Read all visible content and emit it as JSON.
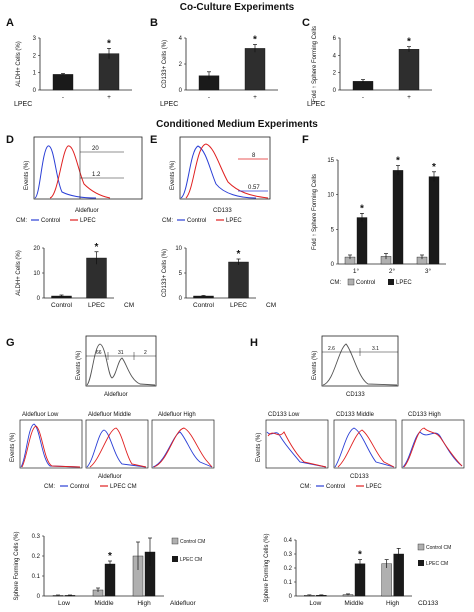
{
  "titles": {
    "coculture": "Co-Culture Experiments",
    "conditioned": "Conditioned Medium Experiments"
  },
  "panel_letters": [
    "A",
    "B",
    "C",
    "D",
    "E",
    "F",
    "G",
    "H"
  ],
  "colors": {
    "control_bar": "#1a1a1a",
    "treated_bar": "#2e2e2e",
    "gray_bar": "#b0b0b0",
    "blue_trace": "#2b3fd6",
    "red_trace": "#e02020",
    "black_trace": "#222222"
  },
  "common": {
    "lpec": "LPEC",
    "minus": "-",
    "plus": "+",
    "star": "*",
    "events": "Events (%)",
    "cm_prefix": "CM:",
    "control": "Control",
    "lpec_cm": "LPEC CM",
    "control_cm": "Control CM",
    "cm": "CM",
    "aldefluor": "Aldefluor",
    "aldelfluor": "Aldelfluor",
    "cd133": "CD133",
    "sphere_forming": "Sphere Forming Cells (%)"
  },
  "flow": {
    "D_gate_labels": [
      "20",
      "1.2"
    ],
    "E_gate_labels": [
      "8",
      "0.57"
    ],
    "G_gate_labels": [
      "66",
      "31",
      "2"
    ],
    "H_gate_labels": [
      "2.6",
      "3.1"
    ],
    "G_row_titles": [
      "Aldefluor Low",
      "Aldefluor Middle",
      "Aldefluor High"
    ],
    "H_row_titles": [
      "CD133 Low",
      "CD133 Middle",
      "CD133 High"
    ]
  },
  "chart_data": [
    {
      "panel": "A",
      "type": "bar",
      "categories": [
        "-",
        "+"
      ],
      "values": [
        0.9,
        2.1
      ],
      "errors": [
        0.05,
        0.3
      ],
      "star": [
        false,
        true
      ],
      "ylabel": "ALDH+ Cells (%)",
      "ylim": [
        0,
        3
      ],
      "yticks": [
        0,
        1,
        2,
        3
      ],
      "xtitle": "LPEC"
    },
    {
      "panel": "B",
      "type": "bar",
      "categories": [
        "-",
        "+"
      ],
      "values": [
        1.1,
        3.2
      ],
      "errors": [
        0.3,
        0.3
      ],
      "star": [
        false,
        true
      ],
      "ylabel": "CD133+ Cells (%)",
      "ylim": [
        0,
        4
      ],
      "yticks": [
        0,
        2,
        4
      ],
      "xtitle": "LPEC"
    },
    {
      "panel": "C",
      "type": "bar",
      "categories": [
        "-",
        "+"
      ],
      "values": [
        1.0,
        4.7
      ],
      "errors": [
        0.2,
        0.3
      ],
      "star": [
        false,
        true
      ],
      "ylabel": "Fold ↑ Sphere Forming Cells",
      "ylim": [
        0,
        6
      ],
      "yticks": [
        0,
        2,
        4,
        6
      ],
      "xtitle": "LPEC"
    },
    {
      "panel": "D",
      "type": "bar",
      "categories": [
        "Control",
        "LPEC"
      ],
      "values": [
        0.8,
        16
      ],
      "errors": [
        0.4,
        2.5
      ],
      "star": [
        false,
        true
      ],
      "ylabel": "ALDH+ Cells (%)",
      "ylim": [
        0,
        20
      ],
      "yticks": [
        0,
        10,
        20
      ],
      "xtitle": "CM"
    },
    {
      "panel": "E",
      "type": "bar",
      "categories": [
        "Control",
        "LPEC"
      ],
      "values": [
        0.4,
        7.2
      ],
      "errors": [
        0.1,
        0.6
      ],
      "star": [
        false,
        true
      ],
      "ylabel": "CD133+ Cells (%)",
      "ylim": [
        0,
        10
      ],
      "yticks": [
        0,
        5,
        10
      ],
      "xtitle": "CM"
    },
    {
      "panel": "F",
      "type": "bar",
      "categories": [
        "1°",
        "2°",
        "3°"
      ],
      "series": [
        {
          "name": "Control",
          "values": [
            1.0,
            1.1,
            1.0
          ],
          "errors": [
            0.3,
            0.4,
            0.3
          ]
        },
        {
          "name": "LPEC",
          "values": [
            6.7,
            13.5,
            12.6
          ],
          "errors": [
            0.6,
            0.7,
            0.7
          ]
        }
      ],
      "ylabel": "Fold ↑ Sphere Forming Cells",
      "ylim": [
        0,
        15
      ],
      "yticks": [
        0,
        5,
        10,
        15
      ]
    },
    {
      "panel": "G",
      "type": "bar",
      "categories": [
        "Low",
        "Middle",
        "High"
      ],
      "series": [
        {
          "name": "Control CM",
          "values": [
            0.003,
            0.03,
            0.2
          ],
          "errors": [
            0.002,
            0.01,
            0.07
          ]
        },
        {
          "name": "LPEC CM",
          "values": [
            0.003,
            0.16,
            0.22
          ],
          "errors": [
            0.002,
            0.015,
            0.07
          ]
        }
      ],
      "ylabel": "Sphere Forming Cells (%)",
      "ylim": [
        0,
        0.3
      ],
      "yticks": [
        0,
        0.1,
        0.2,
        0.3
      ],
      "xtitle": "Aldefluor"
    },
    {
      "panel": "H",
      "type": "bar",
      "categories": [
        "Low",
        "Middle",
        "High"
      ],
      "series": [
        {
          "name": "Control CM",
          "values": [
            0.005,
            0.01,
            0.23
          ],
          "errors": [
            0.003,
            0.005,
            0.03
          ]
        },
        {
          "name": "LPEC CM",
          "values": [
            0.005,
            0.23,
            0.3
          ],
          "errors": [
            0.003,
            0.03,
            0.04
          ]
        }
      ],
      "ylabel": "Sphere Forming Cells (%)",
      "ylim": [
        0,
        0.4
      ],
      "yticks": [
        0,
        0.1,
        0.2,
        0.3,
        0.4
      ],
      "xtitle": "CD133"
    }
  ]
}
